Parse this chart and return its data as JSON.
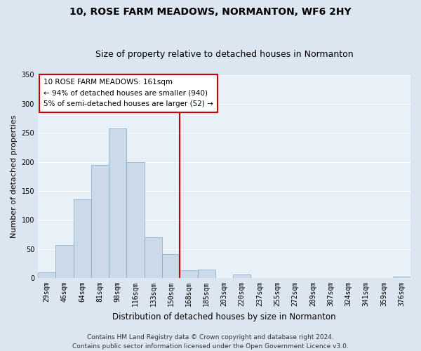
{
  "title": "10, ROSE FARM MEADOWS, NORMANTON, WF6 2HY",
  "subtitle": "Size of property relative to detached houses in Normanton",
  "xlabel": "Distribution of detached houses by size in Normanton",
  "ylabel": "Number of detached properties",
  "bar_labels": [
    "29sqm",
    "46sqm",
    "64sqm",
    "81sqm",
    "98sqm",
    "116sqm",
    "133sqm",
    "150sqm",
    "168sqm",
    "185sqm",
    "203sqm",
    "220sqm",
    "237sqm",
    "255sqm",
    "272sqm",
    "289sqm",
    "307sqm",
    "324sqm",
    "341sqm",
    "359sqm",
    "376sqm"
  ],
  "bar_heights": [
    10,
    57,
    136,
    195,
    258,
    200,
    70,
    41,
    13,
    15,
    0,
    6,
    0,
    0,
    0,
    0,
    0,
    0,
    0,
    0,
    3
  ],
  "bar_color": "#ccd9e8",
  "bar_edge_color": "#7aaac8",
  "vline_x_index": 7.5,
  "vline_color": "#cc0000",
  "ylim": [
    0,
    350
  ],
  "yticks": [
    0,
    50,
    100,
    150,
    200,
    250,
    300,
    350
  ],
  "annotation_title": "10 ROSE FARM MEADOWS: 161sqm",
  "annotation_line1": "← 94% of detached houses are smaller (940)",
  "annotation_line2": "5% of semi-detached houses are larger (52) →",
  "annotation_box_color": "#ffffff",
  "annotation_edge_color": "#cc0000",
  "footer_line1": "Contains HM Land Registry data © Crown copyright and database right 2024.",
  "footer_line2": "Contains public sector information licensed under the Open Government Licence v3.0.",
  "background_color": "#dce6f0",
  "plot_background_color": "#e8f0f8",
  "grid_color": "#ffffff",
  "title_fontsize": 10,
  "subtitle_fontsize": 9,
  "xlabel_fontsize": 8.5,
  "ylabel_fontsize": 8,
  "tick_fontsize": 7,
  "annot_fontsize": 7.5,
  "footer_fontsize": 6.5
}
